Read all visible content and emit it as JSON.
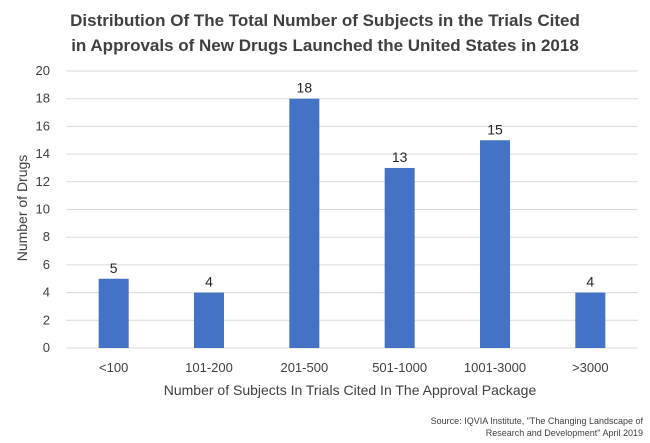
{
  "chart_data": {
    "type": "bar",
    "title_lines": [
      "Distribution Of The Total Number of Subjects in the Trials Cited",
      "in Approvals of New Drugs Launched the United States in 2018"
    ],
    "categories": [
      "<100",
      "101-200",
      "201-500",
      "501-1000",
      "1001-3000",
      ">3000"
    ],
    "values": [
      5,
      4,
      18,
      13,
      15,
      4
    ],
    "xlabel": "Number of Subjects In Trials Cited In The Approval Package",
    "ylabel": "Number of Drugs",
    "ylim": [
      0,
      20
    ],
    "yticks": [
      0,
      2,
      4,
      6,
      8,
      10,
      12,
      14,
      16,
      18,
      20
    ],
    "grid": true,
    "bar_color": "#4472C4",
    "grid_color": "#D9D9D9",
    "source_lines": [
      "Source: IQVIA Institute, \"The Changing Landscape of",
      "Research and Development\" April 2019"
    ]
  }
}
